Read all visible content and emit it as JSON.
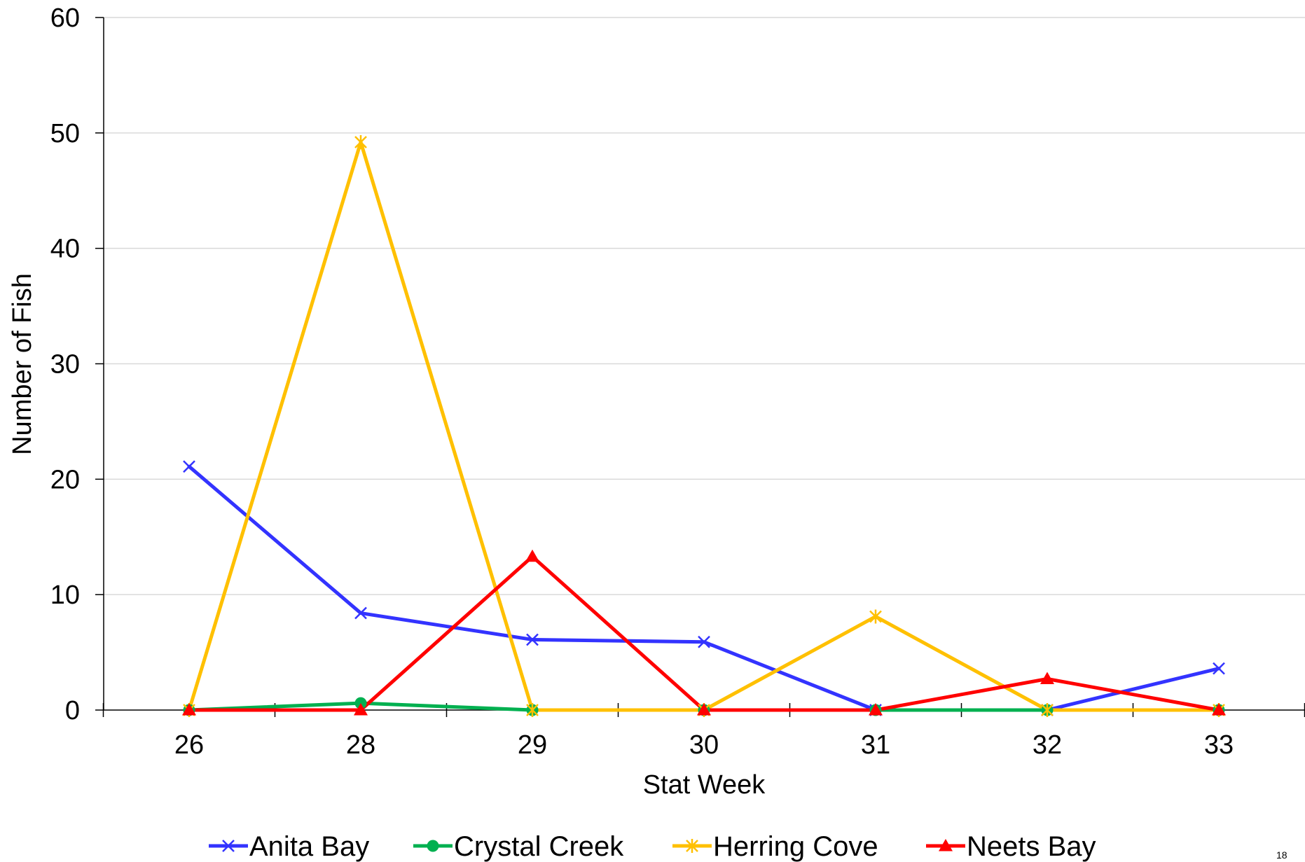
{
  "chart_data": {
    "type": "line",
    "categories": [
      "26",
      "28",
      "29",
      "30",
      "31",
      "32",
      "33"
    ],
    "series": [
      {
        "name": "Anita Bay",
        "color": "#3333ff",
        "marker": "x",
        "values": [
          21.1,
          8.4,
          6.1,
          5.9,
          0,
          0,
          3.6
        ]
      },
      {
        "name": "Crystal Creek",
        "color": "#00b050",
        "marker": "circle",
        "values": [
          0,
          0.6,
          0,
          0,
          0,
          0,
          0
        ]
      },
      {
        "name": "Herring Cove",
        "color": "#ffc000",
        "marker": "star",
        "values": [
          0,
          49.2,
          0,
          0,
          8.1,
          0,
          0
        ]
      },
      {
        "name": "Neets Bay",
        "color": "#ff0000",
        "marker": "triangle",
        "values": [
          0,
          0,
          13.3,
          0,
          0,
          2.7,
          0
        ]
      }
    ],
    "xlabel": "Stat Week",
    "ylabel": "Number of Fish",
    "ylim": [
      0,
      60
    ],
    "yticks": [
      0,
      10,
      20,
      30,
      40,
      50,
      60
    ],
    "grid": true,
    "legend": "bottom"
  },
  "page_number": "18"
}
